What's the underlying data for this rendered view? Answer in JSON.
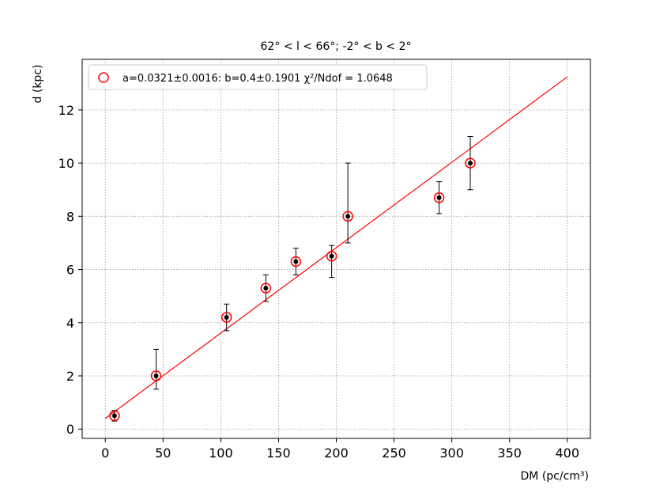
{
  "chart_data": {
    "type": "scatter",
    "title": "62° < l < 66°; -2° < b < 2°",
    "xlabel": "DM (pc/cm³)",
    "ylabel": "d (kpc)",
    "xlim": [
      -20,
      420
    ],
    "ylim": [
      -0.35,
      13.9
    ],
    "xticks": [
      0,
      50,
      100,
      150,
      200,
      250,
      300,
      350,
      400
    ],
    "yticks": [
      0,
      2,
      4,
      6,
      8,
      10,
      12
    ],
    "grid": true,
    "legend_position": "top-left",
    "colors": {
      "fit_line": "#ff0000",
      "marker_ring": "#ff0000",
      "point": "#000000",
      "errorbar": "#000000",
      "grid": "#999999"
    },
    "points": [
      {
        "x": 8,
        "y": 0.5,
        "ylow": 0.3,
        "yhigh": 0.7
      },
      {
        "x": 44,
        "y": 2.0,
        "ylow": 1.5,
        "yhigh": 3.0
      },
      {
        "x": 105,
        "y": 4.2,
        "ylow": 3.7,
        "yhigh": 4.7
      },
      {
        "x": 139,
        "y": 5.3,
        "ylow": 4.8,
        "yhigh": 5.8
      },
      {
        "x": 165,
        "y": 6.3,
        "ylow": 5.8,
        "yhigh": 6.8
      },
      {
        "x": 196,
        "y": 6.5,
        "ylow": 5.7,
        "yhigh": 6.9
      },
      {
        "x": 210,
        "y": 8.0,
        "ylow": 7.0,
        "yhigh": 10.0
      },
      {
        "x": 289,
        "y": 8.7,
        "ylow": 8.1,
        "yhigh": 9.3
      },
      {
        "x": 316,
        "y": 10.0,
        "ylow": 9.0,
        "yhigh": 11.0
      }
    ],
    "fit": {
      "a": 0.0321,
      "b": 0.4,
      "x_range": [
        0,
        400
      ],
      "legend_label": "a=0.0321±0.0016: b=0.4±0.1901 χ²/Ndof = 1.0648"
    }
  }
}
